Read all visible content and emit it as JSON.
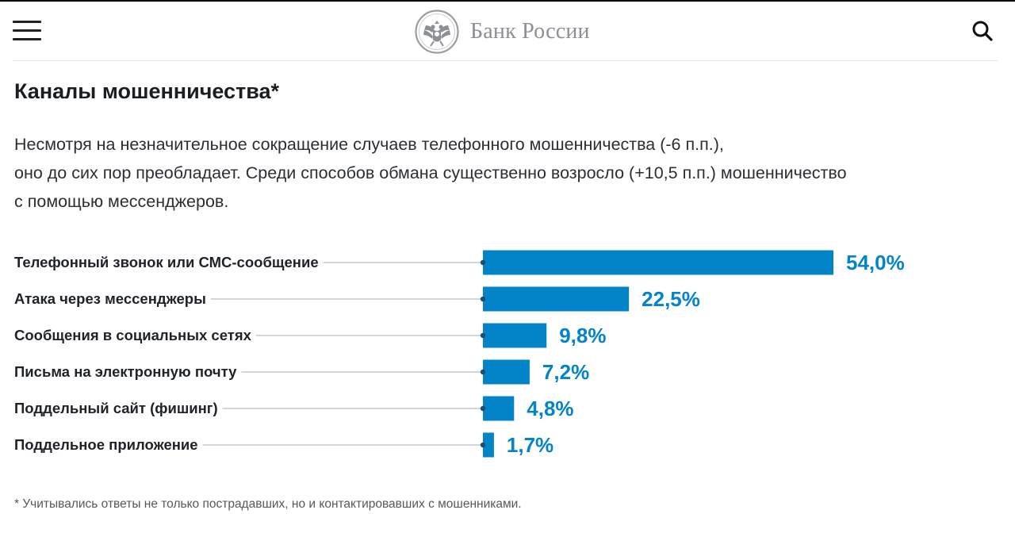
{
  "header": {
    "brand_name": "Банк России",
    "icons": {
      "menu": "hamburger-menu-icon",
      "logo": "double-headed-eagle-emblem",
      "search": "search-icon"
    }
  },
  "article": {
    "title": "Каналы мошенничества*",
    "lead_lines": [
      "Несмотря на незначительное сокращение случаев телефонного мошенничества (-6 п.п.),",
      "оно до сих пор преобладает.  Среди способов обмана существенно возросло (+10,5 п.п.) мошенничество",
      "с помощью мессенджеров."
    ],
    "footnote": "* Учитывались ответы не только пострадавших, но и контактировавших с мошенниками."
  },
  "colors": {
    "bar": "#0384c9",
    "label_value": "#0384c9",
    "leader": "#b7bcc2",
    "text": "#1f2328"
  },
  "chart_data": {
    "type": "bar",
    "orientation": "horizontal",
    "categories": [
      "Телефонный звонок или СМС-сообщение",
      "Атака через мессенджеры",
      "Сообщения в социальных сетях",
      "Письма на электронную почту",
      "Поддельный сайт (фишинг)",
      "Поддельное приложение"
    ],
    "values": [
      54.0,
      22.5,
      9.8,
      7.2,
      4.8,
      1.7
    ],
    "value_labels": [
      "54,0%",
      "22,5%",
      "9,8%",
      "7,2%",
      "4,8%",
      "1,7%"
    ],
    "unit": "%",
    "title": "",
    "xlabel": "",
    "ylabel": "",
    "xlim": [
      0,
      54.0
    ],
    "grid": false,
    "legend": "none"
  }
}
